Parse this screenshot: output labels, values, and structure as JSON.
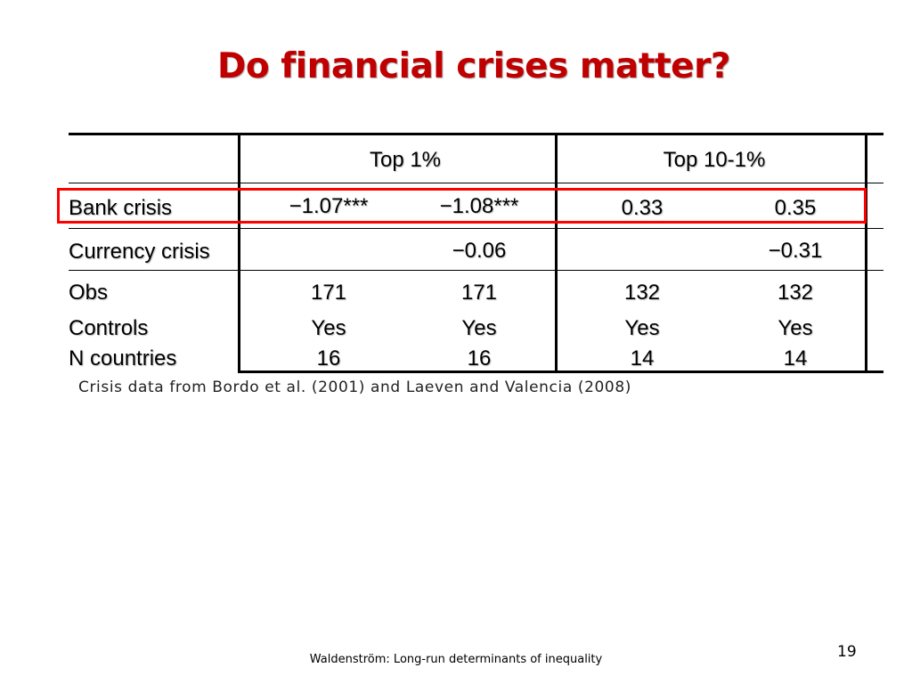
{
  "slide": {
    "title": "Do financial crises matter?",
    "note": "Crisis data from Bordo et al. (2001) and Laeven and Valencia (2008)",
    "footer": "Waldenström: Long-run determinants of inequality",
    "page_number": "19",
    "highlight_color": "#ff0000",
    "title_color": "#c00000"
  },
  "table": {
    "headers": [
      "Top 1%",
      "Top 10-1%"
    ],
    "rows": [
      {
        "label": "Bank crisis",
        "values": [
          "−1.07***",
          "−1.08***",
          "0.33",
          "0.35"
        ]
      },
      {
        "label": "Currency crisis",
        "values": [
          "",
          "−0.06",
          "",
          "−0.31"
        ]
      },
      {
        "label": "Obs",
        "values": [
          "171",
          "171",
          "132",
          "132"
        ]
      },
      {
        "label": "Controls",
        "values": [
          "Yes",
          "Yes",
          "Yes",
          "Yes"
        ]
      },
      {
        "label": "N countries",
        "values": [
          "16",
          "16",
          "14",
          "14"
        ]
      }
    ]
  }
}
